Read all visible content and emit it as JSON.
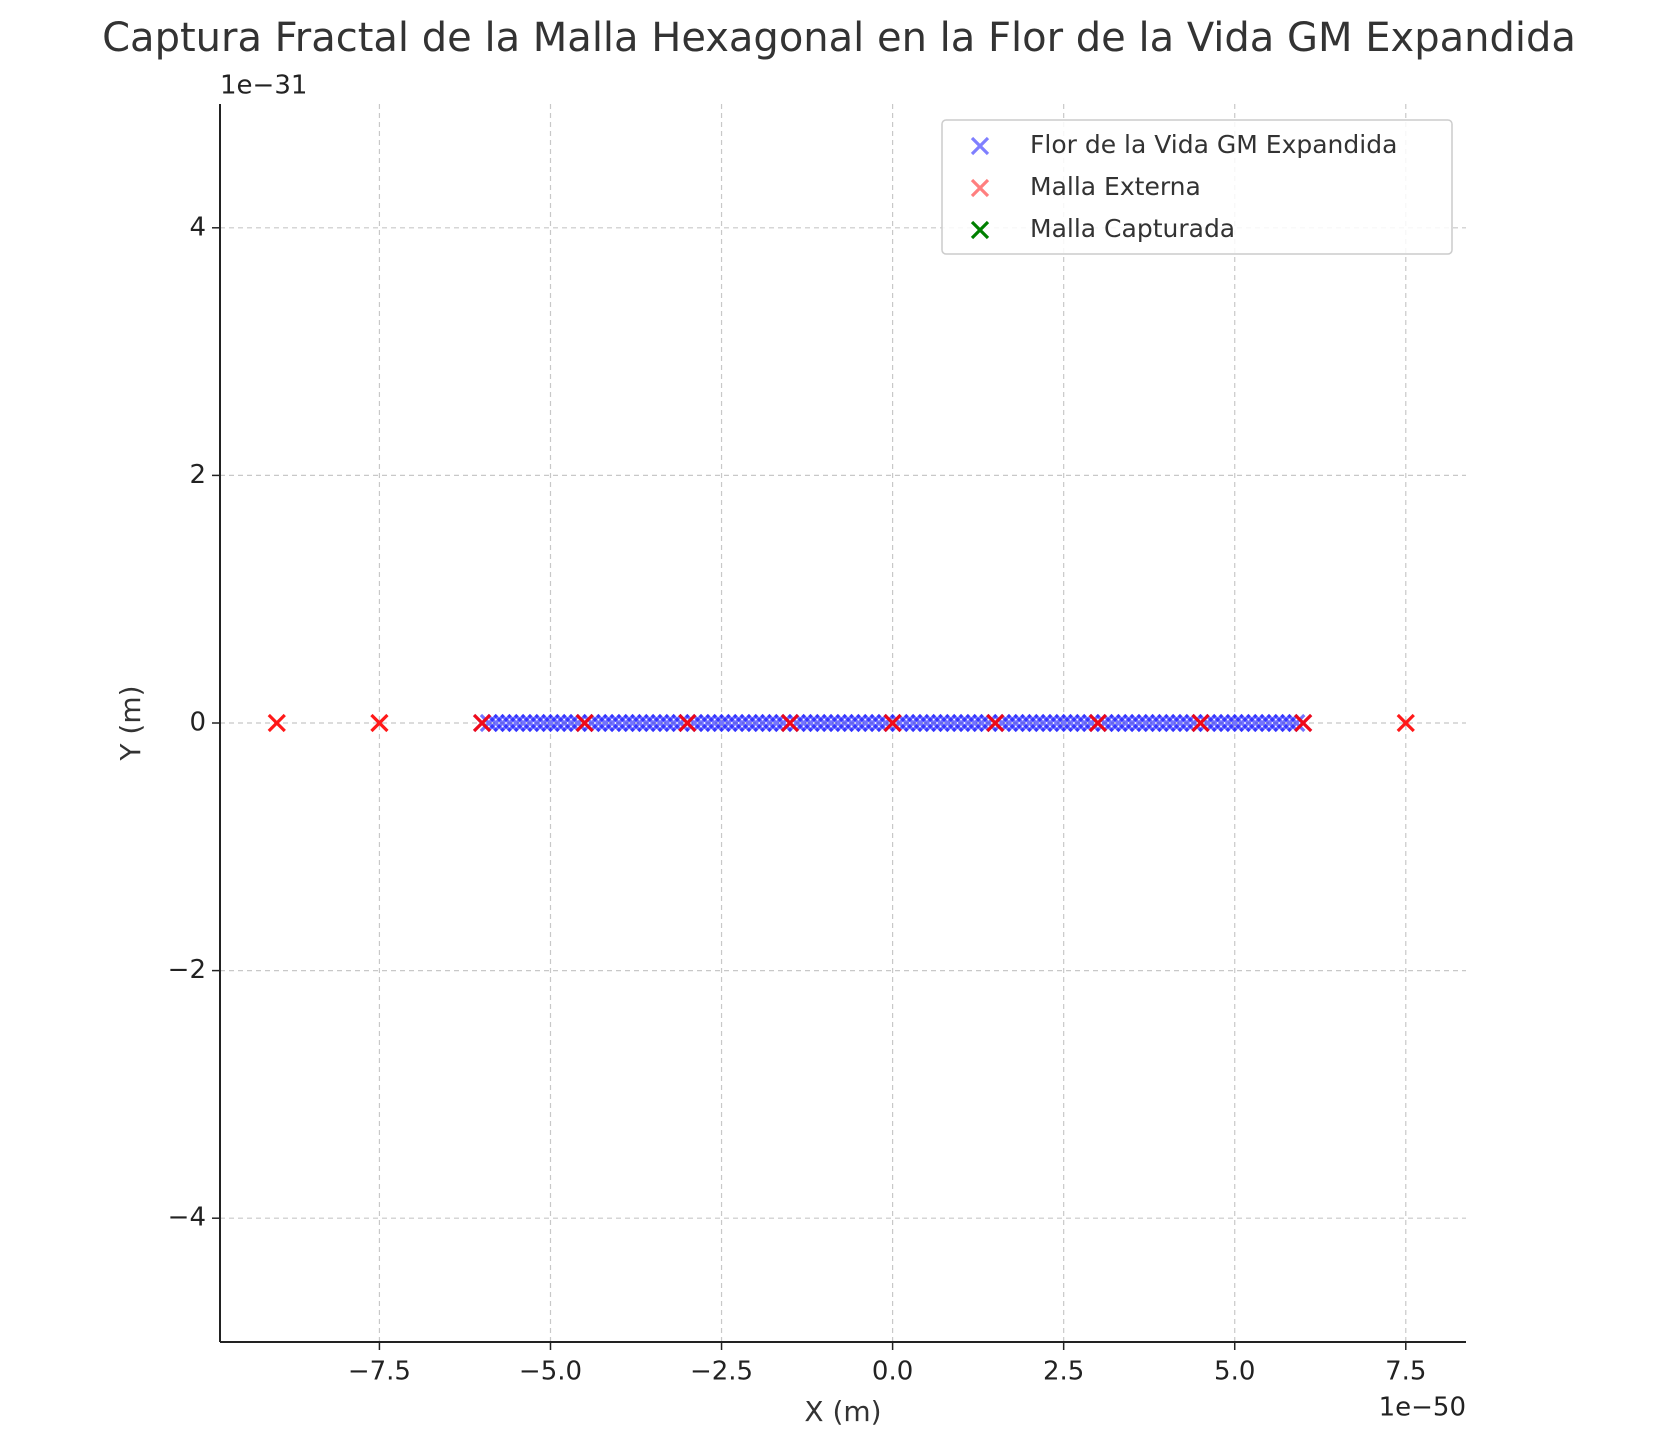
{
  "chart_data": {
    "type": "scatter",
    "title": "Captura Fractal de la Malla Hexagonal en la Flor de la Vida GM Expandida",
    "x_label": "X (m)",
    "y_label": "Y (m)",
    "x_offset_label": "1e−50",
    "y_offset_label": "1e−31",
    "xlim": [
      -9.83,
      8.38
    ],
    "ylim": [
      -5,
      5
    ],
    "xticks": [
      {
        "value": -7.5,
        "label": "−7.5"
      },
      {
        "value": -5,
        "label": "−5.0"
      },
      {
        "value": -2.5,
        "label": "−2.5"
      },
      {
        "value": 0,
        "label": "0.0"
      },
      2.5,
      {
        "value": 5,
        "label": "5.0"
      },
      7.5
    ],
    "yticks": [
      {
        "value": -4,
        "label": "−4"
      },
      {
        "value": -2,
        "label": "−2"
      },
      0,
      2,
      4
    ],
    "grid": true,
    "legend": "upper right",
    "series": [
      {
        "name": "Flor de la Vida GM Expandida",
        "color": "#0000ff",
        "x": [
          -6,
          -5.9,
          -5.8,
          -5.7,
          -5.6,
          -5.5,
          -5.4,
          -5.3,
          -5.2,
          -5.1,
          -5,
          -4.9,
          -4.8,
          -4.7,
          -4.6,
          -4.5,
          -4.4,
          -4.3,
          -4.2,
          -4.1,
          -4,
          -3.9,
          -3.8,
          -3.7,
          -3.6,
          -3.5,
          -3.4,
          -3.3,
          -3.2,
          -3.1,
          -3,
          -2.9,
          -2.8,
          -2.7,
          -2.6,
          -2.5,
          -2.4,
          -2.3,
          -2.2,
          -2.1,
          -2,
          -1.9,
          -1.8,
          -1.7,
          -1.6,
          -1.5,
          -1.4,
          -1.3,
          -1.2,
          -1.1,
          -1,
          -0.9,
          -0.8,
          -0.7,
          -0.6,
          -0.5,
          -0.4,
          -0.3,
          -0.2,
          -0.1,
          0,
          0.1,
          0.2,
          0.3,
          0.4,
          0.5,
          0.6,
          0.7,
          0.8,
          0.9,
          1,
          1.1,
          1.2,
          1.3,
          1.4,
          1.5,
          1.6,
          1.7,
          1.8,
          1.9,
          2,
          2.1,
          2.2,
          2.3,
          2.4,
          2.5,
          2.6,
          2.7,
          2.8,
          2.9,
          3,
          3.1,
          3.2,
          3.3,
          3.4,
          3.5,
          3.6,
          3.7,
          3.8,
          3.9,
          4,
          4.1,
          4.2,
          4.3,
          4.4,
          4.5,
          4.6,
          4.7,
          4.8,
          4.9,
          5,
          5.1,
          5.2,
          5.3,
          5.4,
          5.5,
          5.6,
          5.7,
          5.8,
          5.9,
          6
        ],
        "y": [
          0,
          0,
          0,
          0,
          0,
          0,
          0,
          0,
          0,
          0,
          0,
          0,
          0,
          0,
          0,
          0,
          0,
          0,
          0,
          0,
          0,
          0,
          0,
          0,
          0,
          0,
          0,
          0,
          0,
          0,
          0,
          0,
          0,
          0,
          0,
          0,
          0,
          0,
          0,
          0,
          0,
          0,
          0,
          0,
          0,
          0,
          0,
          0,
          0,
          0,
          0,
          0,
          0,
          0,
          0,
          0,
          0,
          0,
          0,
          0,
          0,
          0,
          0,
          0,
          0,
          0,
          0,
          0,
          0,
          0,
          0,
          0,
          0,
          0,
          0,
          0,
          0,
          0,
          0,
          0,
          0,
          0,
          0,
          0,
          0,
          0,
          0,
          0,
          0,
          0,
          0,
          0,
          0,
          0,
          0,
          0,
          0,
          0,
          0,
          0,
          0,
          0,
          0,
          0,
          0,
          0,
          0,
          0,
          0,
          0,
          0,
          0,
          0,
          0,
          0,
          0,
          0,
          0,
          0,
          0,
          0
        ]
      },
      {
        "name": "Malla Externa",
        "color": "#ff0000",
        "x": [
          -9,
          -7.5,
          -6,
          -4.5,
          -3,
          -1.5,
          0,
          1.5,
          3,
          4.5,
          6,
          7.5
        ],
        "y": [
          0,
          0,
          0,
          0,
          0,
          0,
          0,
          0,
          0,
          0,
          0,
          0
        ]
      },
      {
        "name": "Malla Capturada",
        "color": "#008000",
        "x": [],
        "y": []
      }
    ]
  }
}
